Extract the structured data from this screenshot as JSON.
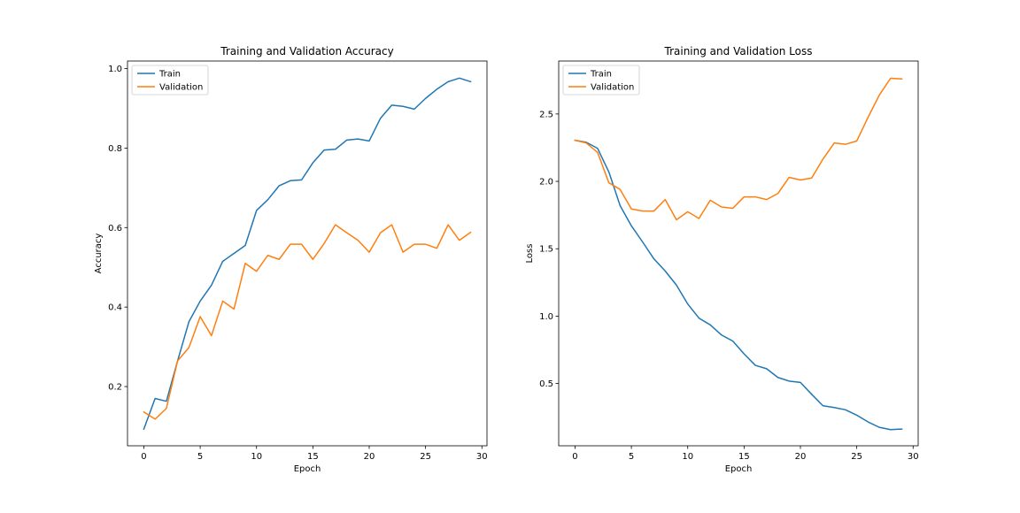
{
  "chart_data": [
    {
      "type": "line",
      "title": "Training and Validation Accuracy",
      "xlabel": "Epoch",
      "ylabel": "Accuracy",
      "xlim": [
        -1.45,
        30.45
      ],
      "ylim": [
        0.051,
        1.019
      ],
      "xticks": [
        0,
        5,
        10,
        15,
        20,
        25,
        30
      ],
      "xtick_labels": [
        "0",
        "5",
        "10",
        "15",
        "20",
        "25",
        "30"
      ],
      "yticks": [
        0.2,
        0.4,
        0.6,
        0.8,
        1.0
      ],
      "ytick_labels": [
        "0.2",
        "0.4",
        "0.6",
        "0.8",
        "1.0"
      ],
      "grid": false,
      "legend_placement": "upper-left",
      "x": [
        0,
        1,
        2,
        3,
        4,
        5,
        6,
        7,
        8,
        9,
        10,
        11,
        12,
        13,
        14,
        15,
        16,
        17,
        18,
        19,
        20,
        21,
        22,
        23,
        24,
        25,
        26,
        27,
        28,
        29
      ],
      "series": [
        {
          "name": "Train",
          "color": "#1f77b4",
          "values": [
            0.093,
            0.17,
            0.163,
            0.265,
            0.363,
            0.415,
            0.455,
            0.515,
            0.535,
            0.555,
            0.643,
            0.67,
            0.705,
            0.718,
            0.72,
            0.763,
            0.795,
            0.797,
            0.82,
            0.823,
            0.818,
            0.875,
            0.908,
            0.905,
            0.898,
            0.925,
            0.948,
            0.967,
            0.976,
            0.967
          ]
        },
        {
          "name": "Validation",
          "color": "#ff7f0e",
          "values": [
            0.136,
            0.118,
            0.145,
            0.265,
            0.298,
            0.376,
            0.328,
            0.415,
            0.395,
            0.51,
            0.49,
            0.53,
            0.52,
            0.558,
            0.558,
            0.52,
            0.56,
            0.607,
            0.587,
            0.568,
            0.538,
            0.587,
            0.607,
            0.538,
            0.558,
            0.558,
            0.548,
            0.607,
            0.568,
            0.588
          ]
        }
      ]
    },
    {
      "type": "line",
      "title": "Training and Validation Loss",
      "xlabel": "Epoch",
      "ylabel": "Loss",
      "xlim": [
        -1.45,
        30.45
      ],
      "ylim": [
        0.038,
        2.893
      ],
      "xticks": [
        0,
        5,
        10,
        15,
        20,
        25,
        30
      ],
      "xtick_labels": [
        "0",
        "5",
        "10",
        "15",
        "20",
        "25",
        "30"
      ],
      "yticks": [
        0.5,
        1.0,
        1.5,
        2.0,
        2.5
      ],
      "ytick_labels": [
        "0.5",
        "1.0",
        "1.5",
        "2.0",
        "2.5"
      ],
      "grid": false,
      "legend_placement": "upper-left",
      "x": [
        0,
        1,
        2,
        3,
        4,
        5,
        6,
        7,
        8,
        9,
        10,
        11,
        12,
        13,
        14,
        15,
        16,
        17,
        18,
        19,
        20,
        21,
        22,
        23,
        24,
        25,
        26,
        27,
        28,
        29
      ],
      "series": [
        {
          "name": "Train",
          "color": "#1f77b4",
          "values": [
            2.305,
            2.29,
            2.245,
            2.07,
            1.82,
            1.67,
            1.55,
            1.425,
            1.335,
            1.23,
            1.09,
            0.985,
            0.935,
            0.86,
            0.815,
            0.72,
            0.635,
            0.61,
            0.545,
            0.518,
            0.508,
            0.42,
            0.335,
            0.322,
            0.305,
            0.265,
            0.215,
            0.175,
            0.158,
            0.162
          ]
        },
        {
          "name": "Validation",
          "color": "#ff7f0e",
          "values": [
            2.305,
            2.285,
            2.215,
            1.99,
            1.94,
            1.795,
            1.78,
            1.78,
            1.865,
            1.715,
            1.775,
            1.725,
            1.86,
            1.81,
            1.8,
            1.885,
            1.885,
            1.865,
            1.91,
            2.03,
            2.01,
            2.025,
            2.165,
            2.285,
            2.275,
            2.3,
            2.475,
            2.64,
            2.765,
            2.76
          ]
        }
      ]
    }
  ]
}
